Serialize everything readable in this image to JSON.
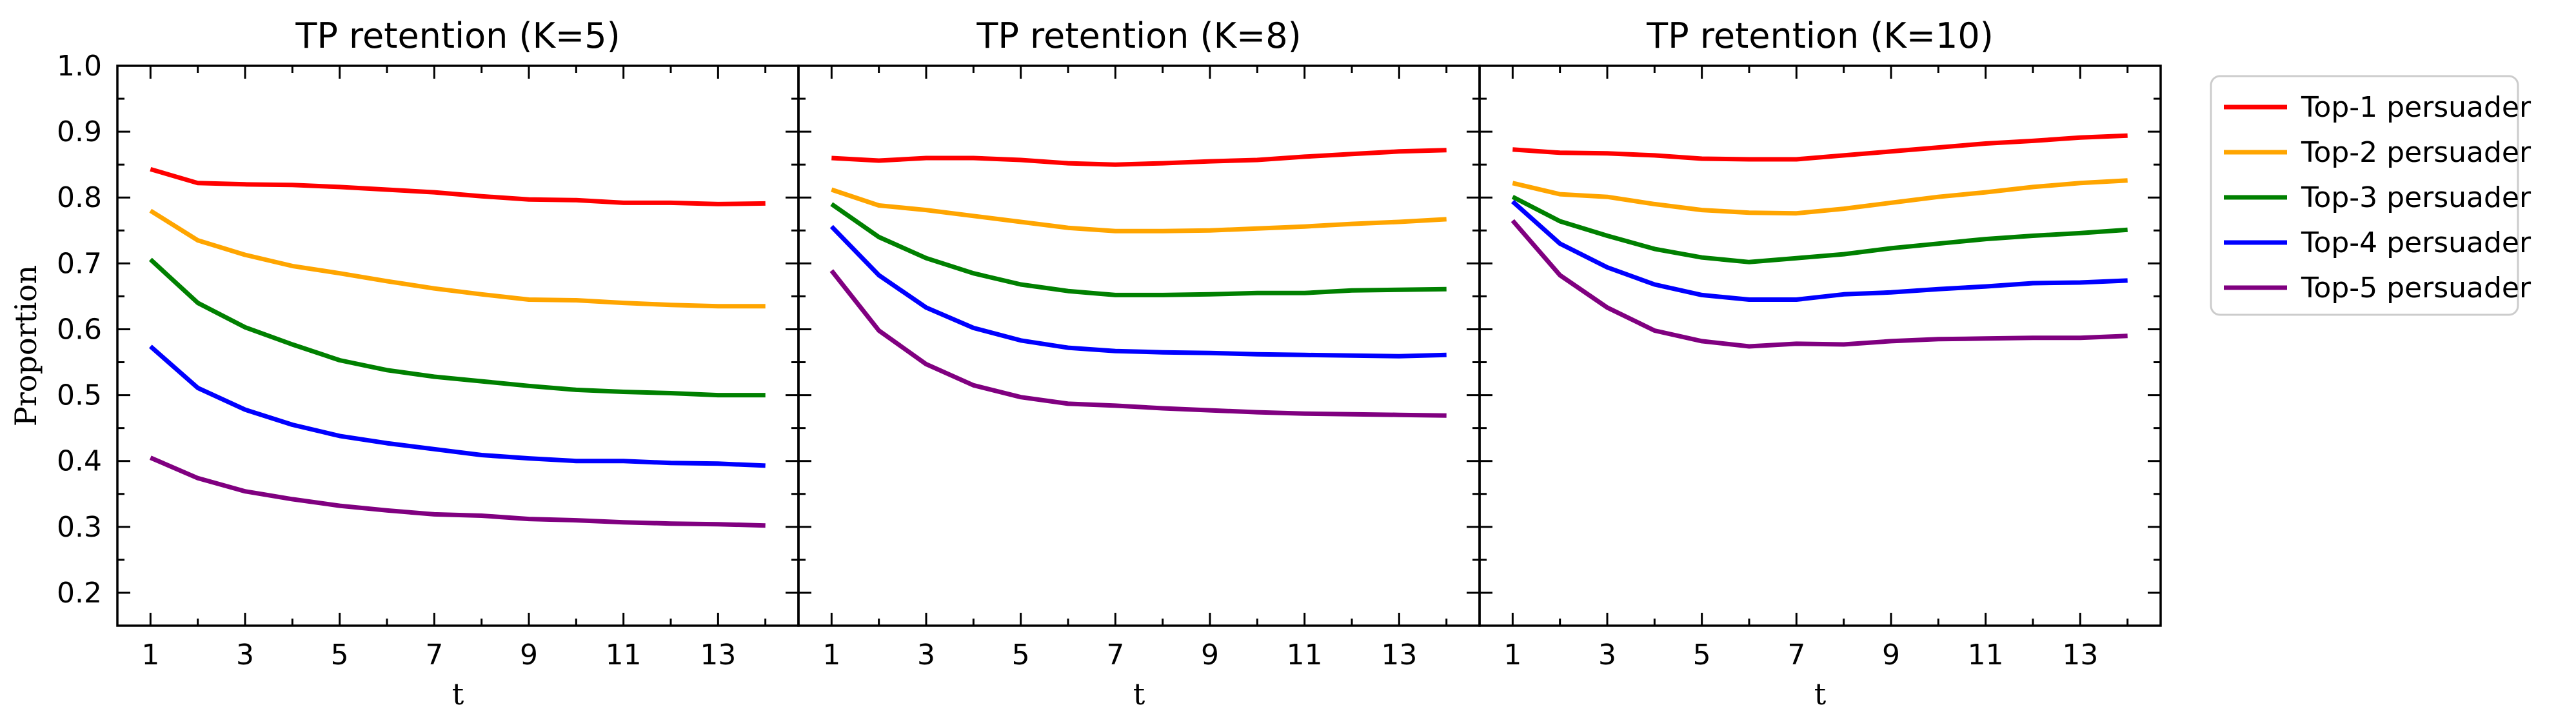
{
  "chart_data": {
    "type": "line",
    "shared_ylabel": "Proportion",
    "legend": {
      "placement": "right",
      "entries": [
        "Top-1 persuader",
        "Top-2 persuader",
        "Top-3 persuader",
        "Top-4 persuader",
        "Top-5 persuader"
      ]
    },
    "colors": [
      "#ff0000",
      "#ffa500",
      "#008000",
      "#0000ff",
      "#800080"
    ],
    "ylim": [
      0.15,
      1.0
    ],
    "yticks": [
      0.2,
      0.3,
      0.4,
      0.5,
      0.6,
      0.7,
      0.8,
      0.9,
      1.0
    ],
    "ytick_labels": [
      "0.2",
      "0.3",
      "0.4",
      "0.5",
      "0.6",
      "0.7",
      "0.8",
      "0.9",
      "1.0"
    ],
    "xlim": [
      0.3,
      14.7
    ],
    "xticks": [
      1,
      3,
      5,
      7,
      9,
      11,
      13
    ],
    "xtick_labels": [
      "1",
      "3",
      "5",
      "7",
      "9",
      "11",
      "13"
    ],
    "panels": [
      {
        "title": "TP retention (K=5)",
        "xlabel": "t",
        "x": [
          1,
          2,
          3,
          4,
          5,
          6,
          7,
          8,
          9,
          10,
          11,
          12,
          13,
          14
        ],
        "series": [
          {
            "name": "Top-1 persuader",
            "values": [
              0.843,
              0.822,
              0.82,
              0.819,
              0.816,
              0.812,
              0.808,
              0.802,
              0.797,
              0.796,
              0.792,
              0.792,
              0.79,
              0.791
            ]
          },
          {
            "name": "Top-2 persuader",
            "values": [
              0.78,
              0.735,
              0.713,
              0.696,
              0.685,
              0.673,
              0.662,
              0.653,
              0.645,
              0.644,
              0.64,
              0.637,
              0.635,
              0.635
            ]
          },
          {
            "name": "Top-3 persuader",
            "values": [
              0.706,
              0.64,
              0.603,
              0.577,
              0.553,
              0.538,
              0.528,
              0.521,
              0.514,
              0.508,
              0.505,
              0.503,
              0.5,
              0.5
            ]
          },
          {
            "name": "Top-4 persuader",
            "values": [
              0.574,
              0.511,
              0.478,
              0.455,
              0.438,
              0.427,
              0.418,
              0.409,
              0.404,
              0.4,
              0.4,
              0.397,
              0.396,
              0.393
            ]
          },
          {
            "name": "Top-5 persuader",
            "values": [
              0.405,
              0.374,
              0.354,
              0.342,
              0.332,
              0.325,
              0.319,
              0.317,
              0.312,
              0.31,
              0.307,
              0.305,
              0.304,
              0.302
            ]
          }
        ]
      },
      {
        "title": "TP retention (K=8)",
        "xlabel": "t",
        "x": [
          1,
          2,
          3,
          4,
          5,
          6,
          7,
          8,
          9,
          10,
          11,
          12,
          13,
          14
        ],
        "series": [
          {
            "name": "Top-1 persuader",
            "values": [
              0.86,
              0.856,
              0.86,
              0.86,
              0.857,
              0.852,
              0.85,
              0.852,
              0.855,
              0.857,
              0.862,
              0.866,
              0.87,
              0.872
            ]
          },
          {
            "name": "Top-2 persuader",
            "values": [
              0.812,
              0.788,
              0.781,
              0.772,
              0.763,
              0.754,
              0.749,
              0.749,
              0.75,
              0.753,
              0.756,
              0.76,
              0.763,
              0.767
            ]
          },
          {
            "name": "Top-3 persuader",
            "values": [
              0.79,
              0.74,
              0.708,
              0.685,
              0.668,
              0.658,
              0.652,
              0.652,
              0.653,
              0.655,
              0.655,
              0.659,
              0.66,
              0.661
            ]
          },
          {
            "name": "Top-4 persuader",
            "values": [
              0.756,
              0.682,
              0.633,
              0.602,
              0.583,
              0.572,
              0.567,
              0.565,
              0.564,
              0.562,
              0.561,
              0.56,
              0.559,
              0.561
            ]
          },
          {
            "name": "Top-5 persuader",
            "values": [
              0.689,
              0.598,
              0.547,
              0.515,
              0.497,
              0.487,
              0.484,
              0.48,
              0.477,
              0.474,
              0.472,
              0.471,
              0.47,
              0.469
            ]
          }
        ]
      },
      {
        "title": "TP retention (K=10)",
        "xlabel": "t",
        "x": [
          1,
          2,
          3,
          4,
          5,
          6,
          7,
          8,
          9,
          10,
          11,
          12,
          13,
          14
        ],
        "series": [
          {
            "name": "Top-1 persuader",
            "values": [
              0.873,
              0.868,
              0.867,
              0.864,
              0.859,
              0.858,
              0.858,
              0.864,
              0.87,
              0.876,
              0.882,
              0.886,
              0.891,
              0.894
            ]
          },
          {
            "name": "Top-2 persuader",
            "values": [
              0.822,
              0.805,
              0.801,
              0.79,
              0.781,
              0.777,
              0.776,
              0.783,
              0.792,
              0.801,
              0.808,
              0.816,
              0.822,
              0.826
            ]
          },
          {
            "name": "Top-3 persuader",
            "values": [
              0.801,
              0.764,
              0.742,
              0.722,
              0.709,
              0.702,
              0.708,
              0.714,
              0.723,
              0.73,
              0.737,
              0.742,
              0.746,
              0.751
            ]
          },
          {
            "name": "Top-4 persuader",
            "values": [
              0.794,
              0.73,
              0.694,
              0.668,
              0.652,
              0.645,
              0.645,
              0.653,
              0.656,
              0.661,
              0.665,
              0.67,
              0.671,
              0.674
            ]
          },
          {
            "name": "Top-5 persuader",
            "values": [
              0.765,
              0.682,
              0.633,
              0.598,
              0.582,
              0.574,
              0.578,
              0.577,
              0.582,
              0.585,
              0.586,
              0.587,
              0.587,
              0.59
            ]
          }
        ]
      }
    ]
  }
}
